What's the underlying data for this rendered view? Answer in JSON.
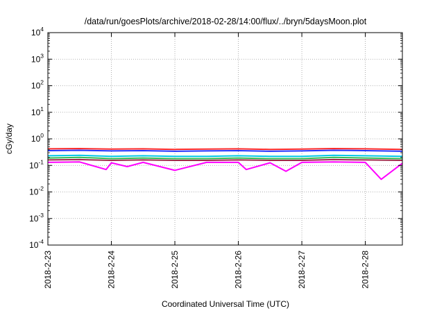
{
  "chart_data": {
    "type": "line",
    "title": "/data/run/goesPlots/archive/2018-02-28/14:00/flux/../bryn/5daysMoon.plot",
    "xlabel": "Coordinated Universal Time (UTC)",
    "ylabel": "cGy/day",
    "yscale": "log",
    "ylim": [
      0.0001,
      10000
    ],
    "y_ticks": [
      {
        "base": "10",
        "exp": "-4"
      },
      {
        "base": "10",
        "exp": "-3"
      },
      {
        "base": "10",
        "exp": "-2"
      },
      {
        "base": "10",
        "exp": "-1"
      },
      {
        "base": "10",
        "exp": "0"
      },
      {
        "base": "10",
        "exp": "1"
      },
      {
        "base": "10",
        "exp": "2"
      },
      {
        "base": "10",
        "exp": "3"
      },
      {
        "base": "10",
        "exp": "4"
      }
    ],
    "x_range": [
      "2018-02-23T00:00",
      "2018-02-28T14:00"
    ],
    "x_ticks": [
      "2018-2-23",
      "2018-2-24",
      "2018-2-25",
      "2018-2-26",
      "2018-2-27",
      "2018-2-28"
    ],
    "grid": true,
    "series": [
      {
        "color": "#ff2a2a",
        "points": [
          [
            "2018-02-23T00:00",
            0.42
          ],
          [
            "2018-02-23T12:00",
            0.43
          ],
          [
            "2018-02-24T00:00",
            0.41
          ],
          [
            "2018-02-24T12:00",
            0.42
          ],
          [
            "2018-02-25T00:00",
            0.4
          ],
          [
            "2018-02-25T12:00",
            0.41
          ],
          [
            "2018-02-26T00:00",
            0.42
          ],
          [
            "2018-02-26T12:00",
            0.4
          ],
          [
            "2018-02-27T00:00",
            0.41
          ],
          [
            "2018-02-27T12:00",
            0.43
          ],
          [
            "2018-02-28T00:00",
            0.42
          ],
          [
            "2018-02-28T14:00",
            0.4
          ]
        ]
      },
      {
        "color": "#2233ff",
        "points": [
          [
            "2018-02-23T00:00",
            0.36
          ],
          [
            "2018-02-23T12:00",
            0.37
          ],
          [
            "2018-02-24T00:00",
            0.35
          ],
          [
            "2018-02-24T12:00",
            0.36
          ],
          [
            "2018-02-25T00:00",
            0.34
          ],
          [
            "2018-02-25T12:00",
            0.35
          ],
          [
            "2018-02-26T00:00",
            0.36
          ],
          [
            "2018-02-26T12:00",
            0.34
          ],
          [
            "2018-02-27T00:00",
            0.35
          ],
          [
            "2018-02-27T12:00",
            0.37
          ],
          [
            "2018-02-28T00:00",
            0.36
          ],
          [
            "2018-02-28T14:00",
            0.34
          ]
        ]
      },
      {
        "color": "#00c8e6",
        "points": [
          [
            "2018-02-23T00:00",
            0.23
          ],
          [
            "2018-02-23T12:00",
            0.24
          ],
          [
            "2018-02-24T00:00",
            0.22
          ],
          [
            "2018-02-24T12:00",
            0.23
          ],
          [
            "2018-02-25T00:00",
            0.22
          ],
          [
            "2018-02-25T12:00",
            0.22
          ],
          [
            "2018-02-26T00:00",
            0.23
          ],
          [
            "2018-02-26T12:00",
            0.22
          ],
          [
            "2018-02-27T00:00",
            0.22
          ],
          [
            "2018-02-27T12:00",
            0.24
          ],
          [
            "2018-02-28T00:00",
            0.23
          ],
          [
            "2018-02-28T14:00",
            0.22
          ]
        ]
      },
      {
        "color": "#33bb55",
        "points": [
          [
            "2018-02-23T00:00",
            0.19
          ],
          [
            "2018-02-23T12:00",
            0.2
          ],
          [
            "2018-02-24T00:00",
            0.18
          ],
          [
            "2018-02-24T12:00",
            0.19
          ],
          [
            "2018-02-25T00:00",
            0.18
          ],
          [
            "2018-02-25T12:00",
            0.18
          ],
          [
            "2018-02-26T00:00",
            0.19
          ],
          [
            "2018-02-26T12:00",
            0.18
          ],
          [
            "2018-02-27T00:00",
            0.18
          ],
          [
            "2018-02-27T12:00",
            0.2
          ],
          [
            "2018-02-28T00:00",
            0.19
          ],
          [
            "2018-02-28T14:00",
            0.18
          ]
        ]
      },
      {
        "color": "#a0284a",
        "points": [
          [
            "2018-02-23T00:00",
            0.16
          ],
          [
            "2018-02-23T12:00",
            0.165
          ],
          [
            "2018-02-24T00:00",
            0.155
          ],
          [
            "2018-02-24T12:00",
            0.16
          ],
          [
            "2018-02-25T00:00",
            0.155
          ],
          [
            "2018-02-25T12:00",
            0.155
          ],
          [
            "2018-02-26T00:00",
            0.16
          ],
          [
            "2018-02-26T12:00",
            0.155
          ],
          [
            "2018-02-27T00:00",
            0.155
          ],
          [
            "2018-02-27T12:00",
            0.165
          ],
          [
            "2018-02-28T00:00",
            0.16
          ],
          [
            "2018-02-28T14:00",
            0.155
          ]
        ]
      },
      {
        "color": "#ff00ff",
        "points": [
          [
            "2018-02-23T00:00",
            0.13
          ],
          [
            "2018-02-23T12:00",
            0.135
          ],
          [
            "2018-02-23T22:00",
            0.07
          ],
          [
            "2018-02-24T00:00",
            0.125
          ],
          [
            "2018-02-24T06:00",
            0.09
          ],
          [
            "2018-02-24T12:00",
            0.13
          ],
          [
            "2018-02-25T00:00",
            0.065
          ],
          [
            "2018-02-25T12:00",
            0.13
          ],
          [
            "2018-02-26T00:00",
            0.13
          ],
          [
            "2018-02-26T03:00",
            0.07
          ],
          [
            "2018-02-26T12:00",
            0.125
          ],
          [
            "2018-02-26T18:00",
            0.06
          ],
          [
            "2018-02-27T00:00",
            0.13
          ],
          [
            "2018-02-27T12:00",
            0.135
          ],
          [
            "2018-02-28T00:00",
            0.13
          ],
          [
            "2018-02-28T06:00",
            0.03
          ],
          [
            "2018-02-28T14:00",
            0.12
          ]
        ]
      }
    ]
  }
}
